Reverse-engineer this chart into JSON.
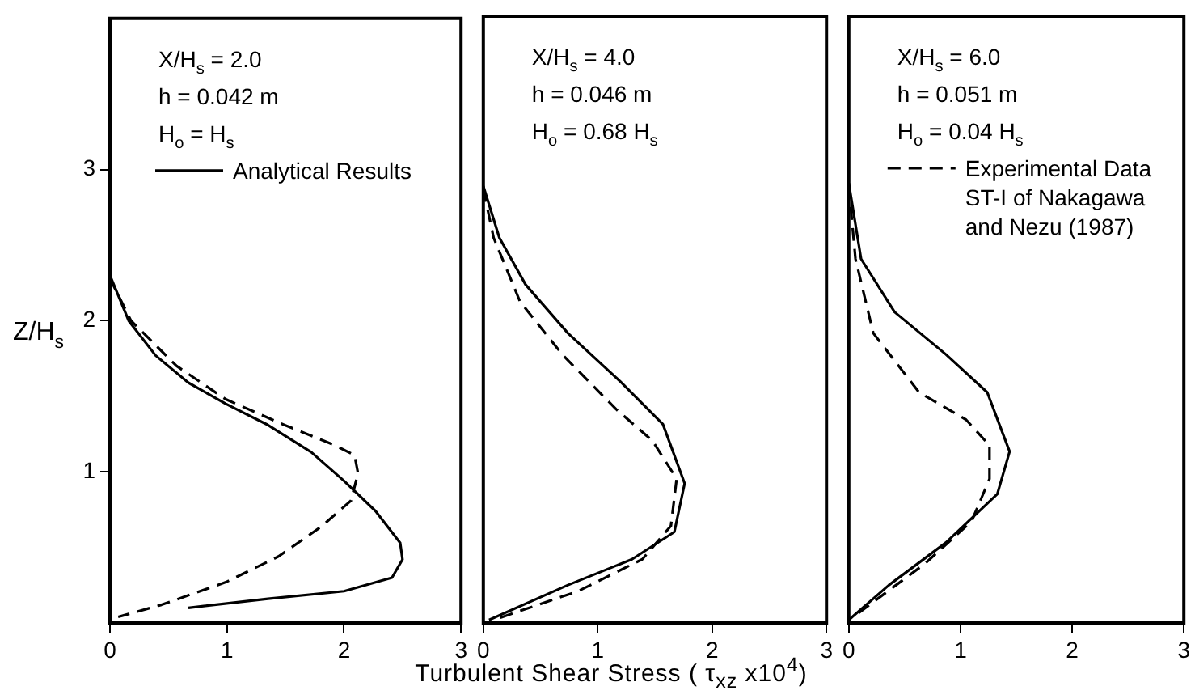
{
  "chart_data": [
    {
      "type": "line",
      "ylabel": "Z/H$_{s}$",
      "xlim": [
        0,
        3
      ],
      "xticks": [
        0,
        1,
        2,
        3
      ],
      "ylim": [
        0,
        4
      ],
      "yticks": [
        1,
        2,
        3
      ],
      "legend": "top left",
      "annotations": [
        "X/H$_{s}$ = 2.0",
        "h = 0.042 m",
        "H$_{o}$ = H$_{s}$"
      ],
      "series": [
        {
          "name": "Analytical Results",
          "color": "#000000",
          "line_style": "solid",
          "x": [
            0,
            0.16,
            0.39,
            0.67,
            0.99,
            1.35,
            1.72,
            2.0,
            2.27,
            2.48,
            2.5,
            2.41,
            2.0,
            1.35,
            0.67
          ],
          "values": [
            2.3,
            2.0,
            1.77,
            1.59,
            1.45,
            1.31,
            1.13,
            0.94,
            0.74,
            0.53,
            0.42,
            0.3,
            0.21,
            0.16,
            0.1
          ]
        },
        {
          "color": "#000000",
          "line_style": "dashed",
          "x": [
            0,
            0.18,
            0.57,
            0.99,
            1.49,
            1.91,
            2.09,
            2.12,
            2.06,
            1.81,
            1.44,
            0.99,
            0.44,
            0.07
          ],
          "values": [
            2.28,
            2.0,
            1.7,
            1.48,
            1.31,
            1.18,
            1.11,
            0.99,
            0.81,
            0.64,
            0.44,
            0.27,
            0.12,
            0.04
          ]
        }
      ]
    },
    {
      "type": "line",
      "xlabel": "Turbulent Shear Stress ( τ$_{xz}$ x10$^{4}$)",
      "xlim": [
        0,
        3
      ],
      "xticks": [
        0,
        1,
        2,
        3
      ],
      "ylim": [
        0,
        4
      ],
      "yticks": [
        1,
        2,
        3
      ],
      "tick_labels": "x",
      "annotations": [
        "X/H$_{s}$ = 4.0",
        "h = 0.046 m",
        "H$_{o}$ = 0.68 H$_{s}$"
      ],
      "series": [
        {
          "color": "#000000",
          "line_style": "solid",
          "x": [
            0,
            0.14,
            0.37,
            0.74,
            1.2,
            1.57,
            1.76,
            1.67,
            1.3,
            0.74,
            0.05
          ],
          "values": [
            2.88,
            2.54,
            2.23,
            1.91,
            1.59,
            1.31,
            0.92,
            0.6,
            0.42,
            0.25,
            0.02
          ]
        },
        {
          "color": "#000000",
          "line_style": "dashed",
          "x": [
            0,
            0.09,
            0.32,
            0.69,
            1.16,
            1.48,
            1.69,
            1.64,
            1.39,
            0.83,
            0.09
          ],
          "values": [
            2.86,
            2.54,
            2.12,
            1.77,
            1.41,
            1.2,
            0.95,
            0.64,
            0.42,
            0.21,
            0.02
          ]
        }
      ]
    },
    {
      "type": "line",
      "xlim": [
        0,
        3
      ],
      "xticks": [
        0,
        1,
        2,
        3
      ],
      "ylim": [
        0,
        4
      ],
      "yticks": [
        1,
        2,
        3
      ],
      "tick_labels": "x",
      "legend": "top right",
      "annotations": [
        "X/H$_{s}$ = 6.0",
        "h = 0.051 m",
        "H$_{o}$ = 0.04 H$_{s}$"
      ],
      "series": [
        {
          "color": "#000000",
          "line_style": "solid",
          "x": [
            0,
            0.11,
            0.41,
            0.87,
            1.24,
            1.44,
            1.33,
            0.87,
            0.36,
            0
          ],
          "values": [
            2.9,
            2.4,
            2.05,
            1.77,
            1.52,
            1.13,
            0.85,
            0.53,
            0.25,
            0.02
          ]
        },
        {
          "name": "Experimental Data ST-I of Nakagawa and Nezu (1987)",
          "color": "#000000",
          "line_style": "dashed",
          "x": [
            0,
            0.06,
            0.22,
            0.63,
            1.05,
            1.26,
            1.26,
            1.1,
            0.68,
            0.04
          ],
          "values": [
            2.88,
            2.4,
            1.91,
            1.52,
            1.34,
            1.17,
            0.95,
            0.67,
            0.39,
            0.04
          ]
        }
      ]
    }
  ]
}
